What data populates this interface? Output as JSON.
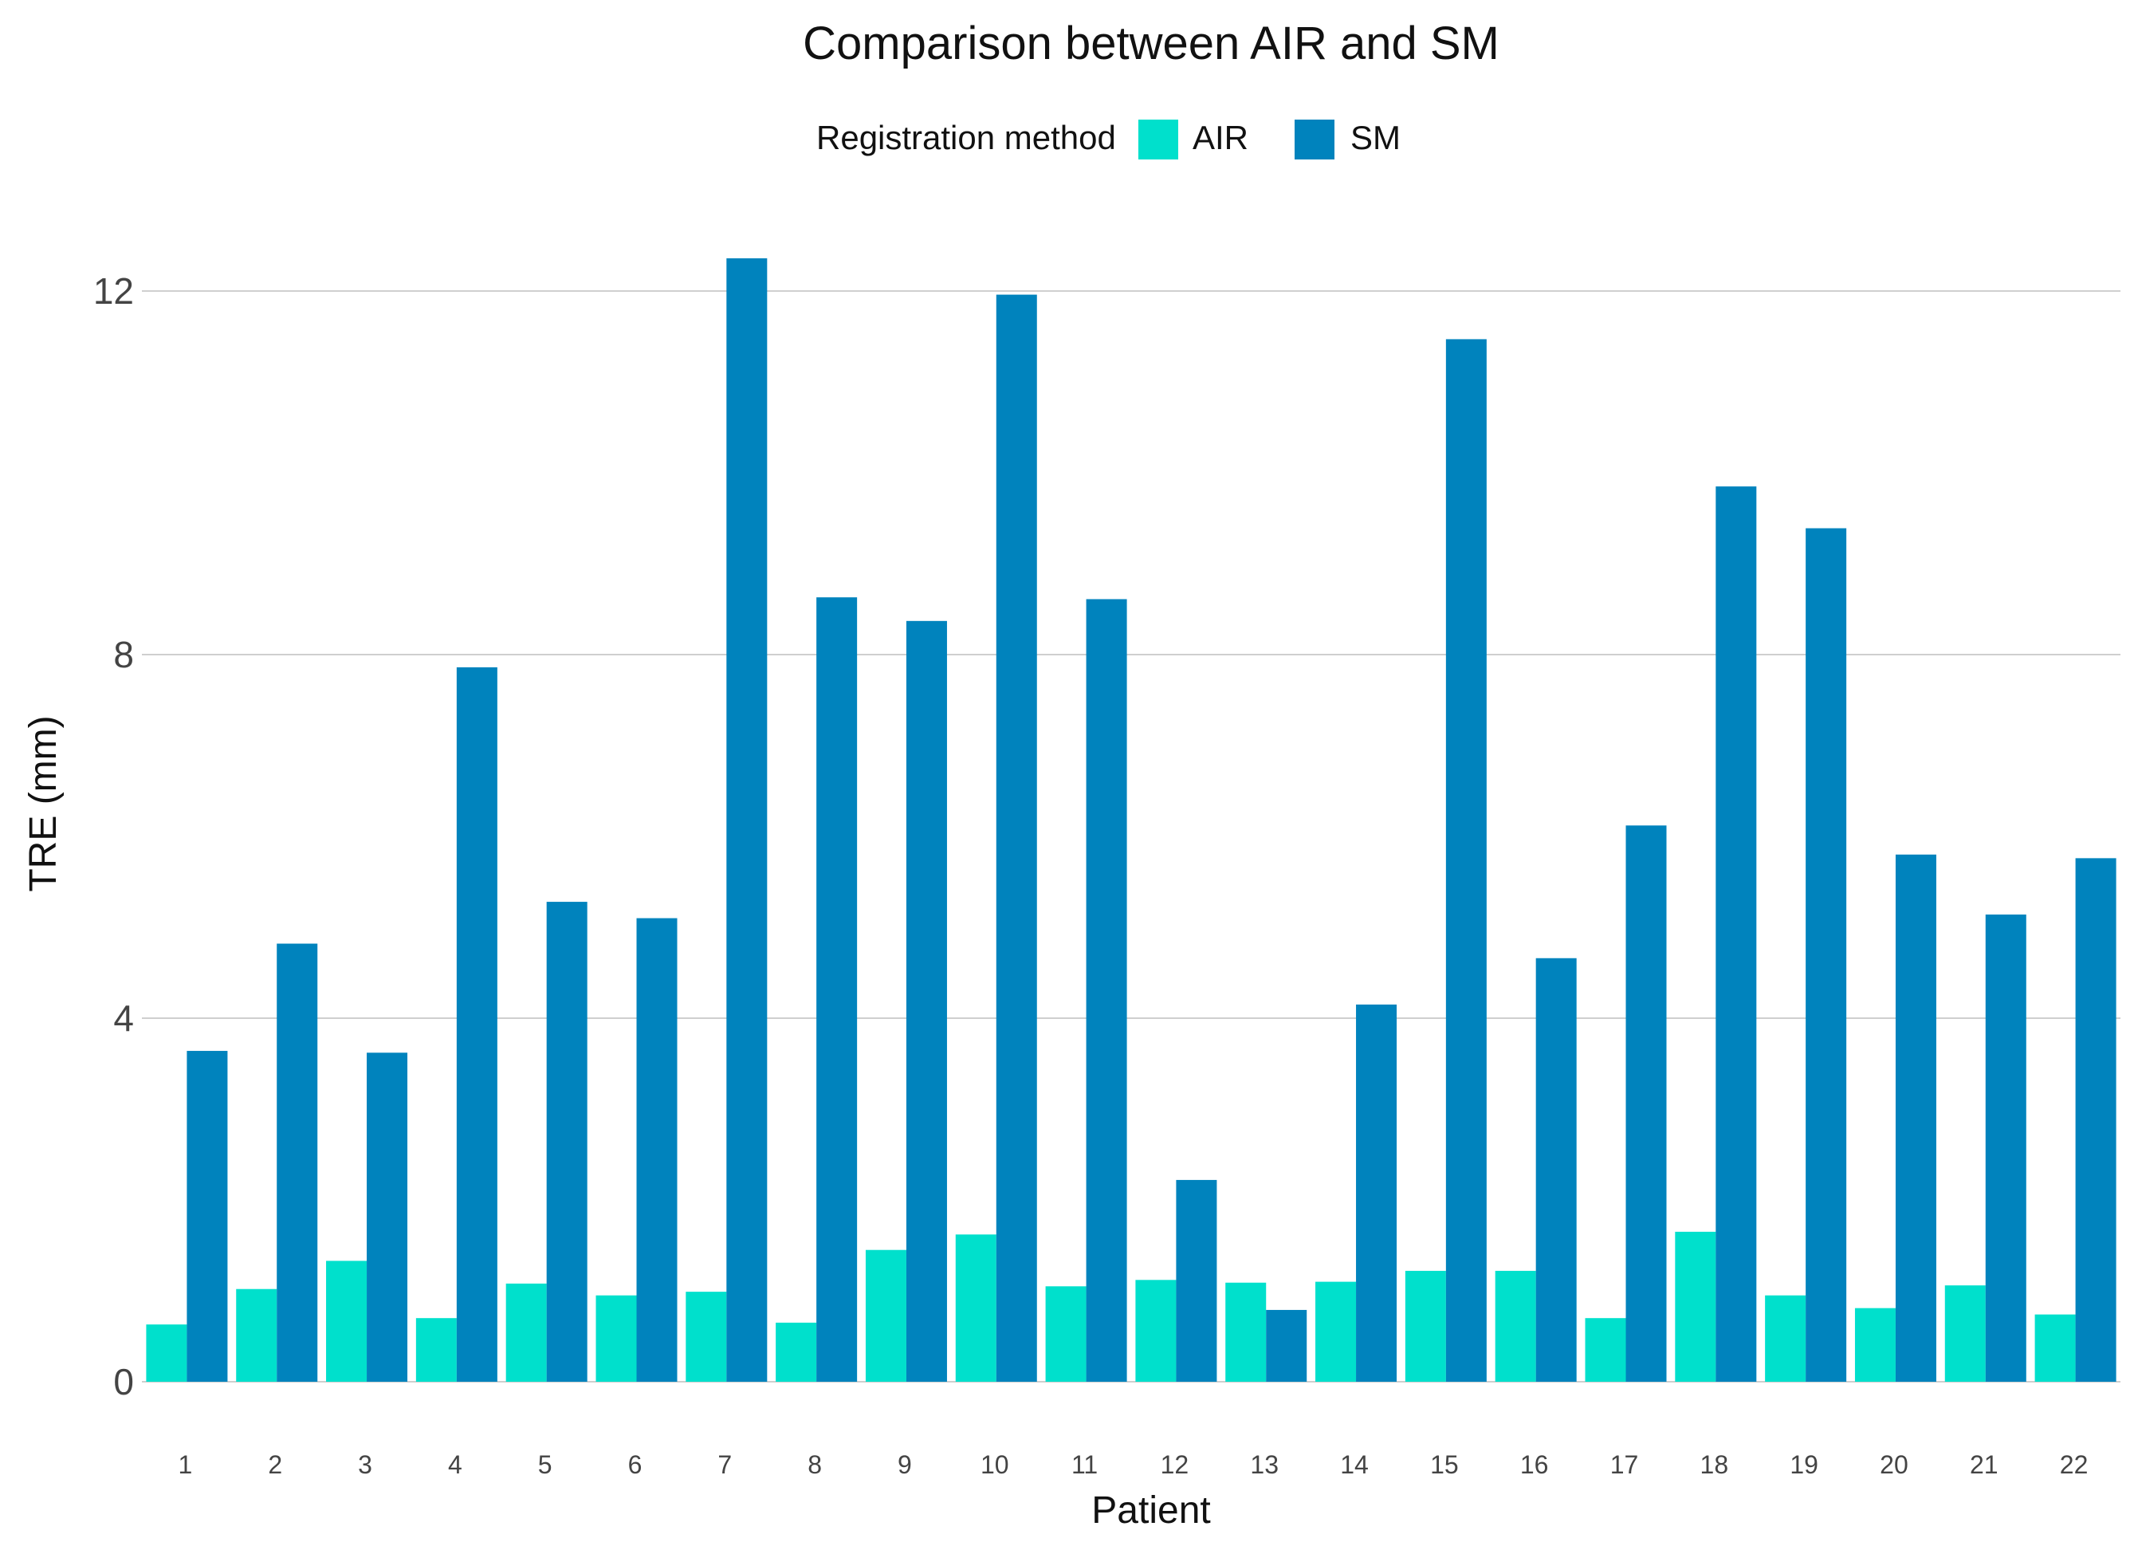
{
  "chart_data": {
    "type": "bar",
    "title": "Comparison between AIR and SM",
    "xlabel": "Patient",
    "ylabel": "TRE (mm)",
    "ylim": [
      0,
      12.4
    ],
    "yticks": [
      0,
      4,
      8,
      12
    ],
    "legend": {
      "title": "Registration method",
      "position": "top-center"
    },
    "categories": [
      "1",
      "2",
      "3",
      "4",
      "5",
      "6",
      "7",
      "8",
      "9",
      "10",
      "11",
      "12",
      "13",
      "14",
      "15",
      "16",
      "17",
      "18",
      "19",
      "20",
      "21",
      "22"
    ],
    "series": [
      {
        "name": "AIR",
        "color": "#00e0cc",
        "values": [
          0.63,
          1.02,
          1.33,
          0.7,
          1.08,
          0.95,
          0.99,
          0.65,
          1.45,
          1.62,
          1.05,
          1.12,
          1.09,
          1.1,
          1.22,
          1.22,
          0.7,
          1.65,
          0.95,
          0.81,
          1.06,
          0.74
        ]
      },
      {
        "name": "SM",
        "color": "#0083bd",
        "values": [
          3.64,
          4.82,
          3.62,
          7.86,
          5.28,
          5.1,
          12.36,
          8.63,
          8.37,
          11.96,
          8.61,
          2.22,
          0.79,
          4.15,
          11.47,
          4.66,
          6.12,
          9.85,
          9.39,
          5.8,
          5.14,
          5.76
        ]
      }
    ]
  }
}
